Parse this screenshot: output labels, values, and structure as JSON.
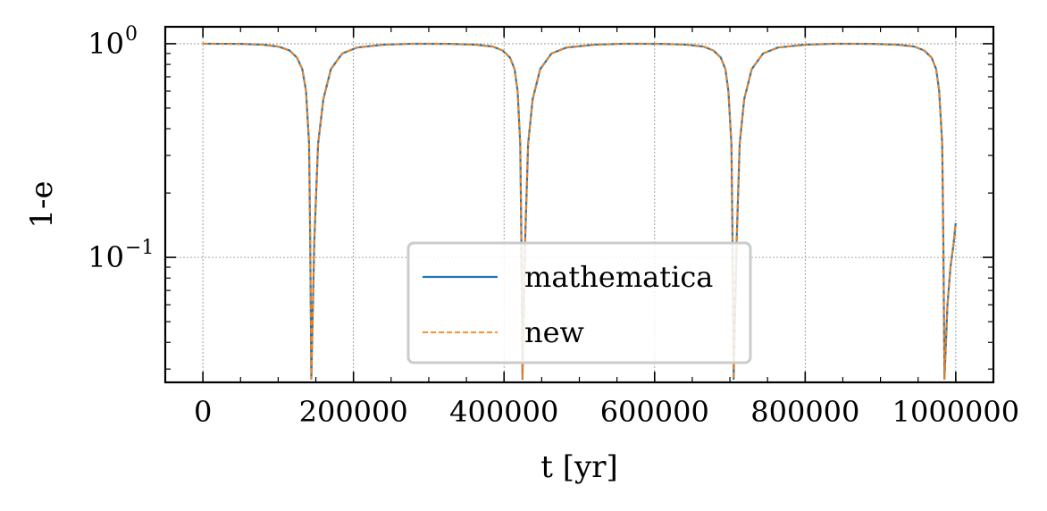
{
  "chart_data": {
    "type": "line",
    "xlabel": "t [yr]",
    "ylabel": "1-e",
    "xlim": [
      -50000,
      1050000
    ],
    "ylim": [
      0.026,
      1.2
    ],
    "yscale": "log",
    "grid": true,
    "legend": "lower center",
    "x_ticks": [
      {
        "value": 0,
        "label": "0"
      },
      {
        "value": 200000,
        "label": "200000"
      },
      {
        "value": 400000,
        "label": "400000"
      },
      {
        "value": 600000,
        "label": "600000"
      },
      {
        "value": 800000,
        "label": "800000"
      },
      {
        "value": 1000000,
        "label": "1000000"
      }
    ],
    "y_ticks": [
      {
        "value": 1,
        "base": "10",
        "exp": "0"
      },
      {
        "value": 0.1,
        "base": "10",
        "exp": "−1"
      }
    ],
    "series": [
      {
        "name": "mathematica",
        "color": "#1f77b4",
        "style": "solid",
        "x": [
          0,
          50000,
          80000,
          100000,
          115000,
          125000,
          132000,
          137000,
          141000,
          142500,
          144000,
          148000,
          153000,
          160000,
          170000,
          185000,
          205000,
          240000,
          280000,
          330000,
          362000,
          385000,
          398000,
          408000,
          414000,
          418000,
          421500,
          423000,
          424500,
          428000,
          432000,
          438000,
          448000,
          463000,
          483000,
          520000,
          560000,
          610000,
          642000,
          665000,
          678000,
          688000,
          694000,
          698000,
          702000,
          703500,
          705000,
          709000,
          713000,
          719000,
          729000,
          744000,
          764000,
          800000,
          840000,
          890000,
          922000,
          945000,
          958000,
          968000,
          974000,
          978000,
          982000,
          983500,
          985000,
          989000,
          993000,
          997000,
          1000000
        ],
        "y": [
          1.0,
          0.998,
          0.99,
          0.97,
          0.93,
          0.86,
          0.76,
          0.6,
          0.34,
          0.12,
          0.027,
          0.12,
          0.34,
          0.55,
          0.76,
          0.9,
          0.96,
          0.99,
          1.0,
          0.998,
          0.99,
          0.97,
          0.93,
          0.86,
          0.76,
          0.6,
          0.34,
          0.12,
          0.027,
          0.12,
          0.34,
          0.55,
          0.76,
          0.9,
          0.96,
          0.99,
          1.0,
          0.998,
          0.99,
          0.97,
          0.93,
          0.86,
          0.76,
          0.6,
          0.34,
          0.12,
          0.027,
          0.12,
          0.34,
          0.55,
          0.76,
          0.9,
          0.96,
          0.99,
          1.0,
          0.998,
          0.99,
          0.97,
          0.93,
          0.86,
          0.76,
          0.6,
          0.34,
          0.12,
          0.027,
          0.06,
          0.09,
          0.115,
          0.145
        ]
      },
      {
        "name": "new",
        "color": "#ff7f0e",
        "style": "dashed",
        "x": [
          0,
          50000,
          80000,
          100000,
          115000,
          125000,
          132000,
          137000,
          141000,
          142500,
          144000,
          148000,
          153000,
          160000,
          170000,
          185000,
          205000,
          240000,
          280000,
          330000,
          362000,
          385000,
          398000,
          408000,
          414000,
          418000,
          421500,
          423000,
          424500,
          428000,
          432000,
          438000,
          448000,
          463000,
          483000,
          520000,
          560000,
          610000,
          642000,
          665000,
          678000,
          688000,
          694000,
          698000,
          702000,
          703500,
          705000,
          709000,
          713000,
          719000,
          729000,
          744000,
          764000,
          800000,
          840000,
          890000,
          922000,
          945000,
          958000,
          968000,
          974000,
          978000,
          982000,
          983500,
          985000,
          989000,
          993000,
          997000,
          1000000
        ],
        "y": [
          1.0,
          0.998,
          0.99,
          0.97,
          0.93,
          0.86,
          0.76,
          0.6,
          0.34,
          0.12,
          0.027,
          0.12,
          0.34,
          0.55,
          0.76,
          0.9,
          0.96,
          0.99,
          1.0,
          0.998,
          0.99,
          0.97,
          0.93,
          0.86,
          0.76,
          0.6,
          0.34,
          0.12,
          0.027,
          0.12,
          0.34,
          0.55,
          0.76,
          0.9,
          0.96,
          0.99,
          1.0,
          0.998,
          0.99,
          0.97,
          0.93,
          0.86,
          0.76,
          0.6,
          0.34,
          0.12,
          0.027,
          0.12,
          0.34,
          0.55,
          0.76,
          0.9,
          0.96,
          0.99,
          1.0,
          0.998,
          0.99,
          0.97,
          0.93,
          0.86,
          0.76,
          0.6,
          0.34,
          0.12,
          0.027,
          0.06,
          0.09,
          0.115,
          0.145
        ]
      }
    ]
  }
}
